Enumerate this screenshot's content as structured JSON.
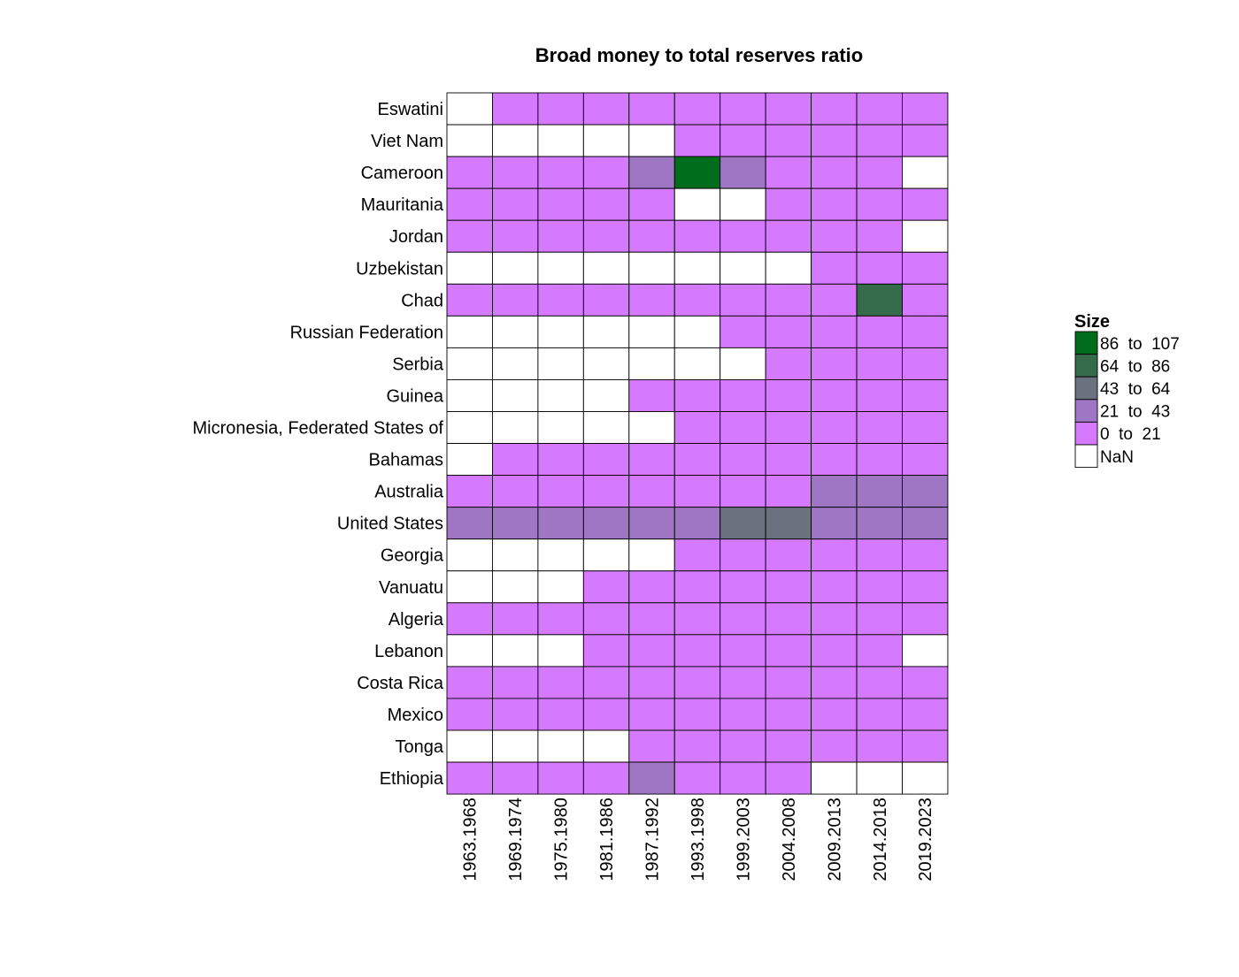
{
  "chart_data": {
    "type": "heatmap",
    "title": "Broad money to total reserves ratio",
    "rows": [
      "Eswatini",
      "Viet Nam",
      "Cameroon",
      "Mauritania",
      "Jordan",
      "Uzbekistan",
      "Chad",
      "Russian Federation",
      "Serbia",
      "Guinea",
      "Micronesia, Federated States of",
      "Bahamas",
      "Australia",
      "United States",
      "Georgia",
      "Vanuatu",
      "Algeria",
      "Lebanon",
      "Costa Rica",
      "Mexico",
      "Tonga",
      "Ethiopia"
    ],
    "columns": [
      "1963.1968",
      "1969.1974",
      "1975.1980",
      "1981.1986",
      "1987.1992",
      "1993.1998",
      "1999.2003",
      "2004.2008",
      "2009.2013",
      "2014.2018",
      "2019.2023"
    ],
    "bins": [
      {
        "label": "86  to  107",
        "color": "#006d1c"
      },
      {
        "label": "64  to  86",
        "color": "#356a4b"
      },
      {
        "label": "43  to  64",
        "color": "#6a717f"
      },
      {
        "label": "21  to  43",
        "color": "#9e76c4"
      },
      {
        "label": "0  to  21",
        "color": "#d57aff"
      },
      {
        "label": "NaN",
        "color": "#ffffff"
      }
    ],
    "bin_index_by_cell": [
      [
        5,
        4,
        4,
        4,
        4,
        4,
        4,
        4,
        4,
        4,
        4
      ],
      [
        5,
        5,
        5,
        5,
        5,
        4,
        4,
        4,
        4,
        4,
        4
      ],
      [
        4,
        4,
        4,
        4,
        3,
        0,
        3,
        4,
        4,
        4,
        5
      ],
      [
        4,
        4,
        4,
        4,
        4,
        5,
        5,
        4,
        4,
        4,
        4
      ],
      [
        4,
        4,
        4,
        4,
        4,
        4,
        4,
        4,
        4,
        4,
        5
      ],
      [
        5,
        5,
        5,
        5,
        5,
        5,
        5,
        5,
        4,
        4,
        4
      ],
      [
        4,
        4,
        4,
        4,
        4,
        4,
        4,
        4,
        4,
        1,
        4
      ],
      [
        5,
        5,
        5,
        5,
        5,
        5,
        4,
        4,
        4,
        4,
        4
      ],
      [
        5,
        5,
        5,
        5,
        5,
        5,
        5,
        4,
        4,
        4,
        4
      ],
      [
        5,
        5,
        5,
        5,
        4,
        4,
        4,
        4,
        4,
        4,
        4
      ],
      [
        5,
        5,
        5,
        5,
        5,
        4,
        4,
        4,
        4,
        4,
        4
      ],
      [
        5,
        4,
        4,
        4,
        4,
        4,
        4,
        4,
        4,
        4,
        4
      ],
      [
        4,
        4,
        4,
        4,
        4,
        4,
        4,
        4,
        3,
        3,
        3
      ],
      [
        3,
        3,
        3,
        3,
        3,
        3,
        2,
        2,
        3,
        3,
        3
      ],
      [
        5,
        5,
        5,
        5,
        5,
        4,
        4,
        4,
        4,
        4,
        4
      ],
      [
        5,
        5,
        5,
        4,
        4,
        4,
        4,
        4,
        4,
        4,
        4
      ],
      [
        4,
        4,
        4,
        4,
        4,
        4,
        4,
        4,
        4,
        4,
        4
      ],
      [
        5,
        5,
        5,
        4,
        4,
        4,
        4,
        4,
        4,
        4,
        5
      ],
      [
        4,
        4,
        4,
        4,
        4,
        4,
        4,
        4,
        4,
        4,
        4
      ],
      [
        4,
        4,
        4,
        4,
        4,
        4,
        4,
        4,
        4,
        4,
        4
      ],
      [
        5,
        5,
        5,
        5,
        4,
        4,
        4,
        4,
        4,
        4,
        4
      ],
      [
        4,
        4,
        4,
        4,
        3,
        4,
        4,
        4,
        5,
        5,
        5
      ]
    ],
    "legend": {
      "title": "Size",
      "position": "right"
    },
    "grid": true
  }
}
